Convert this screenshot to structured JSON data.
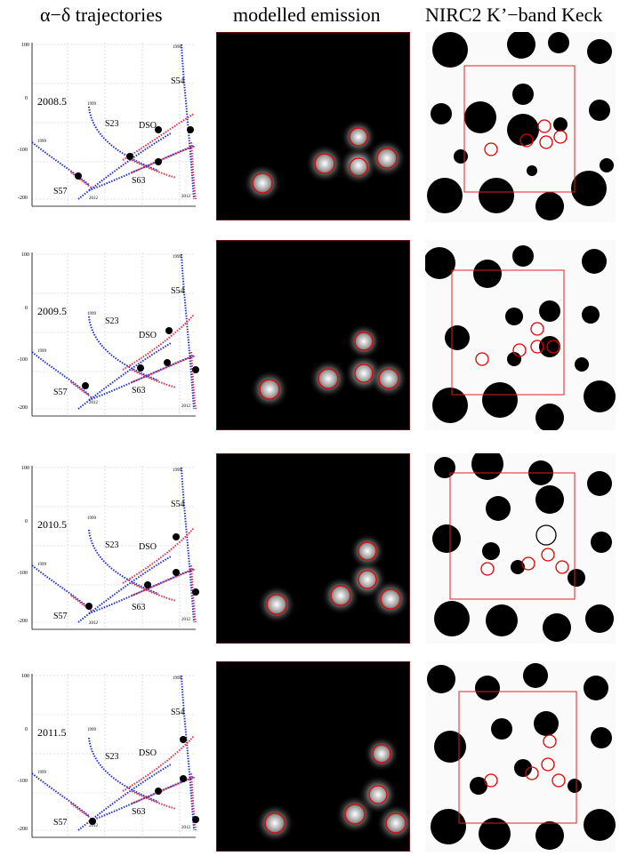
{
  "headers": {
    "trajectories": "α−δ   trajectories",
    "emission": "modelled emission",
    "keck": "NIRC2 K’−band Keck"
  },
  "labels": {
    "S54": "S54",
    "S23": "S23",
    "DSO": "DSO",
    "S57": "S57",
    "S63": "S63",
    "epoch_start": "1999",
    "epoch_end": "2012"
  },
  "axes": {
    "y_ticks": [
      "100",
      "0",
      "-100",
      "-200"
    ],
    "x_ticks": [
      "400",
      "300",
      "200",
      "100"
    ]
  },
  "rows": [
    {
      "year": "2008.5"
    },
    {
      "year": "2009.5"
    },
    {
      "year": "2010.5"
    },
    {
      "year": "2011.5"
    }
  ],
  "colors": {
    "early_orbit": "#2030d0",
    "late_orbit": "#e0304a",
    "marker": "#e00000",
    "frame": "#d02020"
  }
}
